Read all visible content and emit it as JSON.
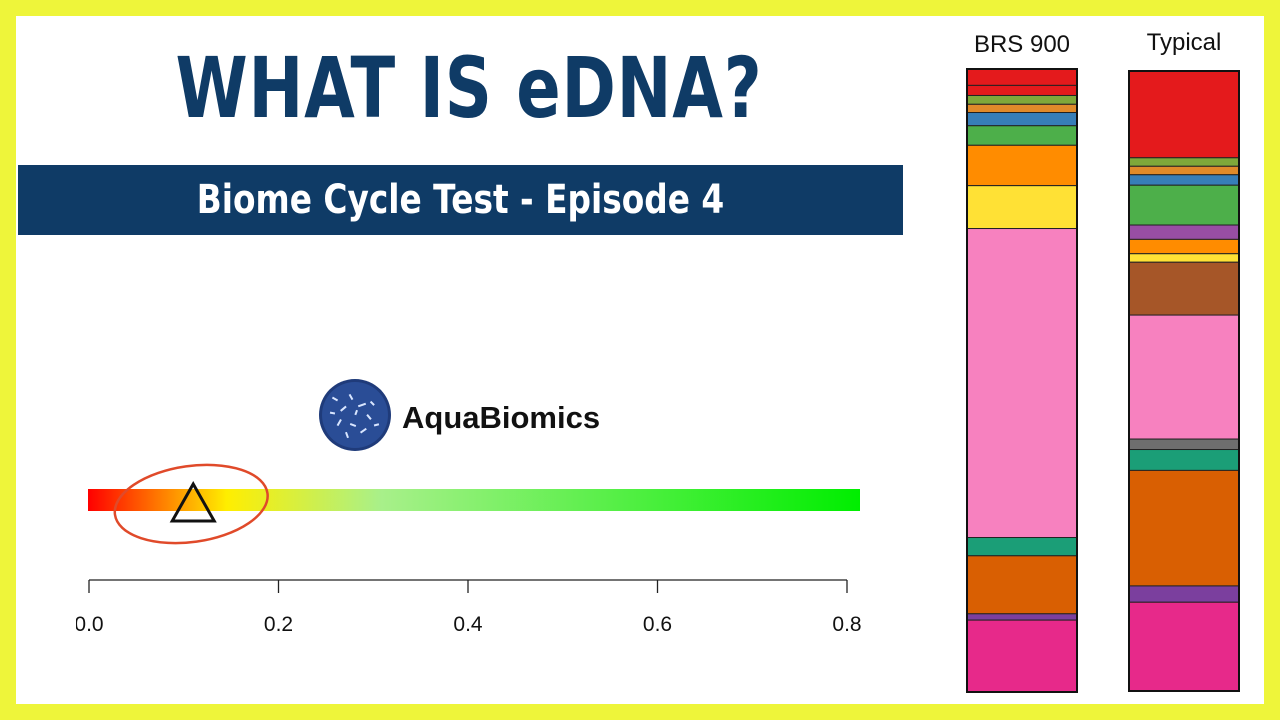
{
  "title": "WHAT IS eDNA?",
  "subtitle": "Biome Cycle Test - Episode 4",
  "brand": {
    "name": "AquaBiomics"
  },
  "colors": {
    "frame": "#eef53a",
    "navy": "#0f3b66",
    "marker_circle": "#e04a2a"
  },
  "score_scale": {
    "ticks": [
      "0.0",
      "0.2",
      "0.4",
      "0.6",
      "0.8"
    ],
    "range": [
      0,
      0.82
    ],
    "marker_value": 0.11,
    "gradient": [
      "#ff0000",
      "#ffee00",
      "#a8f08a",
      "#00ee00"
    ]
  },
  "chart_data": {
    "type": "bar",
    "stacked": true,
    "orientation": "vertical",
    "categories": [
      "BRS 900",
      "Typical"
    ],
    "series": [
      {
        "values": [
          2.6,
          0.0
        ],
        "color": "#e41a1c"
      },
      {
        "values": [
          1.6,
          13.3
        ],
        "color": "#e41a1c"
      },
      {
        "values": [
          1.4,
          1.3
        ],
        "color": "#7fa83a"
      },
      {
        "values": [
          1.3,
          1.3
        ],
        "color": "#e08a2a"
      },
      {
        "values": [
          2.1,
          1.6
        ],
        "color": "#377eb8"
      },
      {
        "values": [
          3.1,
          6.1
        ],
        "color": "#4daf4a"
      },
      {
        "values": [
          0.0,
          2.2
        ],
        "color": "#984ea3"
      },
      {
        "values": [
          6.4,
          2.2
        ],
        "color": "#ff8c00"
      },
      {
        "values": [
          6.8,
          1.3
        ],
        "color": "#ffe135"
      },
      {
        "values": [
          0.0,
          8.1
        ],
        "color": "#a65628"
      },
      {
        "values": [
          49.0,
          19.0
        ],
        "color": "#f781bf"
      },
      {
        "values": [
          0.0,
          1.6
        ],
        "color": "#6e6e6e"
      },
      {
        "values": [
          2.9,
          3.2
        ],
        "color": "#1b9e77"
      },
      {
        "values": [
          9.2,
          17.7
        ],
        "color": "#d95f02"
      },
      {
        "values": [
          1.0,
          2.5
        ],
        "color": "#7b3f9e"
      },
      {
        "values": [
          11.4,
          13.6
        ],
        "color": "#e7298a"
      }
    ],
    "ylim": [
      0,
      100
    ]
  }
}
